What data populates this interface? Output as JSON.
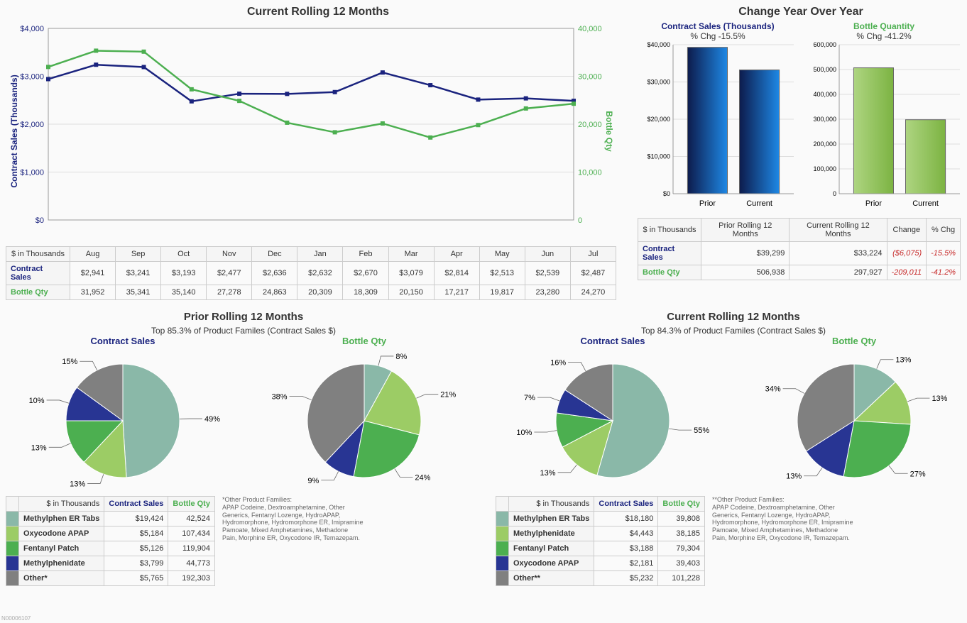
{
  "rolling": {
    "title": "Current Rolling 12 Months",
    "y1_label": "Contract Sales (Thousands)",
    "y2_label": "Bottle Qty",
    "y1_max": 4000,
    "y1_step": 1000,
    "y2_max": 40000,
    "y2_step": 10000,
    "months": [
      "Aug",
      "Sep",
      "Oct",
      "Nov",
      "Dec",
      "Jan",
      "Feb",
      "Mar",
      "Apr",
      "May",
      "Jun",
      "Jul"
    ],
    "contract_sales": [
      2941,
      3241,
      3193,
      2477,
      2636,
      2632,
      2670,
      3079,
      2814,
      2513,
      2539,
      2487
    ],
    "bottle_qty": [
      31952,
      35341,
      35140,
      27278,
      24863,
      20309,
      18309,
      20150,
      17217,
      19817,
      23280,
      24270
    ],
    "contract_sales_fmt": [
      "$2,941",
      "$3,241",
      "$3,193",
      "$2,477",
      "$2,636",
      "$2,632",
      "$2,670",
      "$3,079",
      "$2,814",
      "$2,513",
      "$2,539",
      "$2,487"
    ],
    "bottle_qty_fmt": [
      "31,952",
      "35,341",
      "35,140",
      "27,278",
      "24,863",
      "20,309",
      "18,309",
      "20,150",
      "17,217",
      "19,817",
      "23,280",
      "24,270"
    ],
    "color_sales": "#1a237e",
    "color_qty": "#4caf50",
    "unit_label": "$ in Thousands",
    "row1_label": "Contract Sales",
    "row2_label": "Bottle Qty"
  },
  "yoy": {
    "title": "Change Year Over Year",
    "sales_title": "Contract Sales (Thousands)",
    "sales_sub": "% Chg -15.5%",
    "qty_title": "Bottle Quantity",
    "qty_sub": "% Chg -41.2%",
    "sales_prior": 39299,
    "sales_current": 33224,
    "sales_max": 40000,
    "sales_step": 10000,
    "qty_prior": 506938,
    "qty_current": 297927,
    "qty_max": 600000,
    "qty_step": 100000,
    "label_prior": "Prior",
    "label_current": "Current",
    "table": {
      "unit": "$ in Thousands",
      "cols": [
        "Prior Rolling 12 Months",
        "Current Rolling 12 Months",
        "Change",
        "% Chg"
      ],
      "rows": [
        {
          "label": "Contract Sales",
          "class": "navy",
          "vals": [
            "$39,299",
            "$33,224",
            "($6,075)",
            "-15.5%"
          ],
          "neg": [
            false,
            false,
            true,
            true
          ]
        },
        {
          "label": "Bottle Qty",
          "class": "green",
          "vals": [
            "506,938",
            "297,927",
            "-209,011",
            "-41.2%"
          ],
          "neg": [
            false,
            false,
            true,
            true
          ]
        }
      ]
    }
  },
  "pie_colors": [
    "#8ab8a8",
    "#9ccc65",
    "#4caf50",
    "#283593",
    "#808080"
  ],
  "prior_pies": {
    "title": "Prior Rolling 12 Months",
    "subtitle": "Top 85.3% of Product Familes (Contract Sales $)",
    "sales_title": "Contract Sales",
    "qty_title": "Bottle Qty",
    "sales_slices": [
      49,
      13,
      13,
      10,
      15
    ],
    "sales_labels": [
      "49%",
      "13%",
      "13%",
      "10%",
      "15%"
    ],
    "qty_slices": [
      8,
      21,
      24,
      9,
      38
    ],
    "qty_labels": [
      "8%",
      "21%",
      "24%",
      "9%",
      "38%"
    ],
    "table": {
      "unit": "$ in Thousands",
      "cols": [
        "Contract Sales",
        "Bottle Qty"
      ],
      "rows": [
        {
          "swatch": "#8ab8a8",
          "label": "Methylphen ER Tabs",
          "sales": "$19,424",
          "qty": "42,524"
        },
        {
          "swatch": "#9ccc65",
          "label": "Oxycodone APAP",
          "sales": "$5,184",
          "qty": "107,434"
        },
        {
          "swatch": "#4caf50",
          "label": "Fentanyl Patch",
          "sales": "$5,126",
          "qty": "119,904"
        },
        {
          "swatch": "#283593",
          "label": "Methylphenidate",
          "sales": "$3,799",
          "qty": "44,773"
        },
        {
          "swatch": "#808080",
          "label": "Other*",
          "sales": "$5,765",
          "qty": "192,303"
        }
      ]
    },
    "footnote_title": "*Other Product Families:",
    "footnote": "APAP Codeine, Dextroamphetamine, Other Generics, Fentanyl Lozenge, HydroAPAP, Hydromorphone, Hydromorphone ER, Imipramine Pamoate, Mixed Amphetamines, Methadone Pain, Morphine ER, Oxycodone IR, Temazepam."
  },
  "current_pies": {
    "title": "Current Rolling 12 Months",
    "subtitle": "Top 84.3% of Product Familes (Contract Sales $)",
    "sales_title": "Contract Sales",
    "qty_title": "Bottle Qty",
    "sales_slices": [
      55,
      13,
      10,
      7,
      16
    ],
    "sales_labels": [
      "55%",
      "13%",
      "10%",
      "7%",
      "16%"
    ],
    "qty_slices": [
      13,
      13,
      27,
      13,
      34
    ],
    "qty_labels": [
      "13%",
      "13%",
      "27%",
      "13%",
      "34%"
    ],
    "table": {
      "unit": "$ in Thousands",
      "cols": [
        "Contract Sales",
        "Bottle Qty"
      ],
      "rows": [
        {
          "swatch": "#8ab8a8",
          "label": "Methylphen ER Tabs",
          "sales": "$18,180",
          "qty": "39,808"
        },
        {
          "swatch": "#9ccc65",
          "label": "Methylphenidate",
          "sales": "$4,443",
          "qty": "38,185"
        },
        {
          "swatch": "#4caf50",
          "label": "Fentanyl Patch",
          "sales": "$3,188",
          "qty": "79,304"
        },
        {
          "swatch": "#283593",
          "label": "Oxycodone APAP",
          "sales": "$2,181",
          "qty": "39,403"
        },
        {
          "swatch": "#808080",
          "label": "Other**",
          "sales": "$5,232",
          "qty": "101,228"
        }
      ]
    },
    "footnote_title": "**Other Product Families:",
    "footnote": "APAP Codeine, Dextroamphetamine, Other Generics, Fentanyl Lozenge, HydroAPAP, Hydromorphone, Hydromorphone ER, Imipramine Pamoate, Mixed Amphetamines, Methadone Pain, Morphine ER, Oxycodone IR, Temazepam."
  },
  "doc_id": "N00006107"
}
